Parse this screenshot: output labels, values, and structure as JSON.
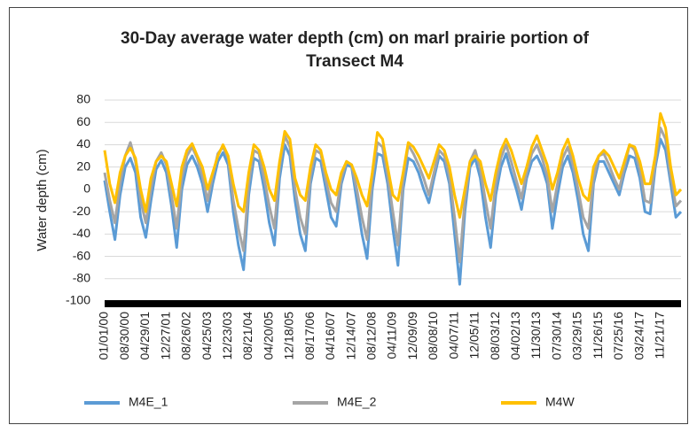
{
  "chart_data": {
    "type": "line",
    "title": "30-Day average water depth (cm) on marl prairie portion of",
    "subtitle": "Transect M4",
    "y_label": "Water depth (cm)",
    "categories": [
      "01/01/00",
      null,
      null,
      null,
      "08/30/00",
      null,
      null,
      null,
      "04/29/01",
      null,
      null,
      null,
      "12/27/01",
      null,
      null,
      null,
      "08/26/02",
      null,
      null,
      null,
      "04/25/03",
      null,
      null,
      null,
      "12/23/03",
      null,
      null,
      null,
      "08/21/04",
      null,
      null,
      null,
      "04/20/05",
      null,
      null,
      null,
      "12/18/05",
      null,
      null,
      null,
      "08/17/06",
      null,
      null,
      null,
      "04/16/07",
      null,
      null,
      null,
      "12/14/07",
      null,
      null,
      null,
      "08/12/08",
      null,
      null,
      null,
      "04/11/09",
      null,
      null,
      null,
      "12/09/09",
      null,
      null,
      null,
      "08/08/10",
      null,
      null,
      null,
      "04/07/11",
      null,
      null,
      null,
      "12/05/11",
      null,
      null,
      null,
      "08/03/12",
      null,
      null,
      null,
      "04/02/13",
      null,
      null,
      null,
      "11/30/13",
      null,
      null,
      null,
      "07/30/14",
      null,
      null,
      null,
      "03/29/15",
      null,
      null,
      null,
      "11/26/15",
      null,
      null,
      null,
      "07/25/16",
      null,
      null,
      null,
      "03/24/17",
      null,
      null,
      null,
      "11/21/17",
      null,
      null,
      null,
      null
    ],
    "series": [
      {
        "name": "M4E_1",
        "color": "#5b9bd5",
        "values": [
          8,
          -20,
          -45,
          -5,
          20,
          28,
          15,
          -25,
          -43,
          -10,
          18,
          26,
          15,
          -15,
          -52,
          0,
          22,
          30,
          20,
          5,
          -20,
          5,
          25,
          33,
          22,
          -20,
          -50,
          -72,
          -5,
          28,
          25,
          0,
          -30,
          -50,
          10,
          40,
          30,
          -10,
          -40,
          -55,
          5,
          28,
          25,
          0,
          -25,
          -33,
          5,
          22,
          20,
          -10,
          -40,
          -62,
          0,
          32,
          30,
          5,
          -35,
          -68,
          0,
          28,
          25,
          15,
          0,
          -12,
          10,
          30,
          25,
          5,
          -40,
          -85,
          -20,
          20,
          28,
          10,
          -25,
          -52,
          -5,
          20,
          32,
          15,
          0,
          -18,
          10,
          25,
          30,
          20,
          5,
          -35,
          -5,
          20,
          30,
          15,
          -10,
          -40,
          -55,
          5,
          25,
          25,
          15,
          5,
          -5,
          15,
          30,
          28,
          10,
          -20,
          -22,
          20,
          45,
          35,
          5,
          -25,
          -20
        ]
      },
      {
        "name": "M4E_2",
        "color": "#a5a5a5",
        "values": [
          15,
          -10,
          -30,
          5,
          30,
          42,
          25,
          -10,
          -30,
          0,
          25,
          33,
          22,
          -5,
          -35,
          10,
          30,
          38,
          28,
          12,
          -10,
          12,
          32,
          38,
          28,
          -10,
          -35,
          -55,
          5,
          35,
          32,
          10,
          -15,
          -35,
          20,
          48,
          38,
          0,
          -25,
          -40,
          12,
          35,
          32,
          8,
          -12,
          -20,
          10,
          25,
          22,
          0,
          -25,
          -45,
          10,
          42,
          38,
          12,
          -20,
          -50,
          8,
          40,
          32,
          22,
          10,
          -5,
          15,
          35,
          30,
          12,
          -25,
          -65,
          -10,
          25,
          35,
          18,
          -10,
          -35,
          5,
          28,
          40,
          25,
          8,
          -8,
          15,
          32,
          40,
          28,
          12,
          -20,
          5,
          28,
          38,
          22,
          0,
          -25,
          -35,
          10,
          30,
          32,
          22,
          10,
          0,
          20,
          40,
          35,
          18,
          -10,
          -12,
          25,
          55,
          45,
          12,
          -15,
          -10
        ]
      },
      {
        "name": "M4W",
        "color": "#ffc000",
        "values": [
          35,
          5,
          -12,
          15,
          30,
          37,
          28,
          0,
          -20,
          10,
          25,
          30,
          25,
          5,
          -15,
          20,
          35,
          41,
          30,
          20,
          0,
          15,
          30,
          40,
          30,
          5,
          -15,
          -20,
          15,
          40,
          35,
          20,
          0,
          -10,
          25,
          52,
          45,
          10,
          -5,
          -10,
          20,
          40,
          35,
          15,
          0,
          -5,
          15,
          25,
          22,
          10,
          -5,
          -15,
          15,
          51,
          45,
          20,
          -5,
          -10,
          15,
          42,
          38,
          30,
          20,
          10,
          25,
          40,
          35,
          20,
          -5,
          -25,
          0,
          25,
          30,
          25,
          5,
          -10,
          15,
          35,
          45,
          35,
          20,
          5,
          20,
          38,
          48,
          35,
          22,
          0,
          15,
          35,
          45,
          30,
          10,
          -5,
          -10,
          20,
          30,
          35,
          30,
          20,
          10,
          25,
          40,
          38,
          25,
          5,
          5,
          30,
          68,
          55,
          20,
          -5,
          0
        ]
      }
    ],
    "ylim": [
      -100,
      80
    ],
    "yticks": [
      -100,
      -80,
      -60,
      -40,
      -20,
      0,
      20,
      40,
      60,
      80
    ],
    "grid": true,
    "legend": "bottom"
  }
}
